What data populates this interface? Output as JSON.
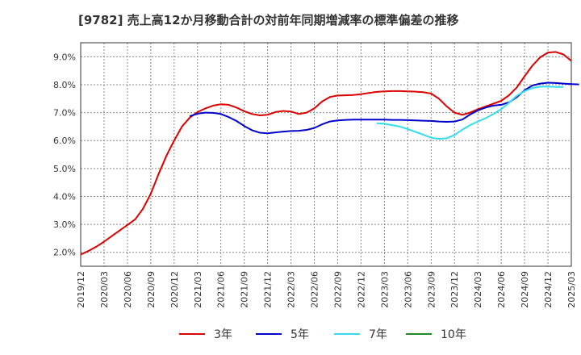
{
  "chart_data": {
    "type": "line",
    "title": "[9782]  売上高12か月移動合計の対前年同期増減率の標準偏差の推移",
    "xlabel": "",
    "ylabel": "",
    "x_ticks": [
      "2019/12",
      "2020/03",
      "2020/06",
      "2020/09",
      "2020/12",
      "2021/03",
      "2021/06",
      "2021/09",
      "2021/12",
      "2022/03",
      "2022/06",
      "2022/09",
      "2022/12",
      "2023/03",
      "2023/06",
      "2023/09",
      "2023/12",
      "2024/03",
      "2024/06",
      "2024/09",
      "2024/12",
      "2025/03"
    ],
    "y_ticks": [
      "2.0%",
      "3.0%",
      "4.0%",
      "5.0%",
      "6.0%",
      "7.0%",
      "8.0%",
      "9.0%"
    ],
    "ylim": [
      1.5,
      9.5
    ],
    "grid": true,
    "legend_position": "bottom",
    "colors": {
      "3年": "#dd0000",
      "5年": "#0000cc",
      "7年": "#33ddee",
      "10年": "#228822"
    },
    "series": [
      {
        "name": "3年",
        "start": "2019/12",
        "values": [
          1.92,
          2.05,
          2.2,
          2.38,
          2.58,
          2.78,
          2.98,
          3.18,
          3.56,
          4.1,
          4.8,
          5.45,
          6.0,
          6.5,
          6.82,
          7.02,
          7.15,
          7.25,
          7.3,
          7.28,
          7.18,
          7.05,
          6.95,
          6.9,
          6.92,
          7.02,
          7.06,
          7.04,
          6.95,
          7.0,
          7.15,
          7.4,
          7.56,
          7.61,
          7.62,
          7.63,
          7.66,
          7.7,
          7.74,
          7.76,
          7.77,
          7.77,
          7.76,
          7.75,
          7.73,
          7.68,
          7.5,
          7.22,
          7.0,
          6.92,
          7.0,
          7.12,
          7.22,
          7.32,
          7.42,
          7.62,
          7.9,
          8.3,
          8.68,
          8.98,
          9.15,
          9.17,
          9.08,
          8.85
        ]
      },
      {
        "name": "5年",
        "start": "2021/02",
        "values": [
          6.87,
          6.96,
          7.0,
          6.99,
          6.95,
          6.84,
          6.7,
          6.52,
          6.37,
          6.28,
          6.26,
          6.29,
          6.32,
          6.34,
          6.35,
          6.38,
          6.45,
          6.58,
          6.68,
          6.72,
          6.74,
          6.75,
          6.75,
          6.75,
          6.75,
          6.75,
          6.74,
          6.74,
          6.73,
          6.72,
          6.71,
          6.7,
          6.68,
          6.67,
          6.68,
          6.75,
          6.93,
          7.08,
          7.18,
          7.25,
          7.28,
          7.37,
          7.55,
          7.8,
          7.97,
          8.04,
          8.07,
          8.06,
          8.04,
          8.02,
          8.01
        ]
      },
      {
        "name": "7年",
        "start": "2023/02",
        "values": [
          6.62,
          6.6,
          6.55,
          6.5,
          6.41,
          6.31,
          6.21,
          6.1,
          6.06,
          6.08,
          6.2,
          6.39,
          6.55,
          6.68,
          6.8,
          6.95,
          7.12,
          7.35,
          7.6,
          7.77,
          7.88,
          7.93,
          7.93,
          7.92,
          7.92
        ]
      },
      {
        "name": "10年",
        "start": "2024/12",
        "values": []
      }
    ]
  }
}
